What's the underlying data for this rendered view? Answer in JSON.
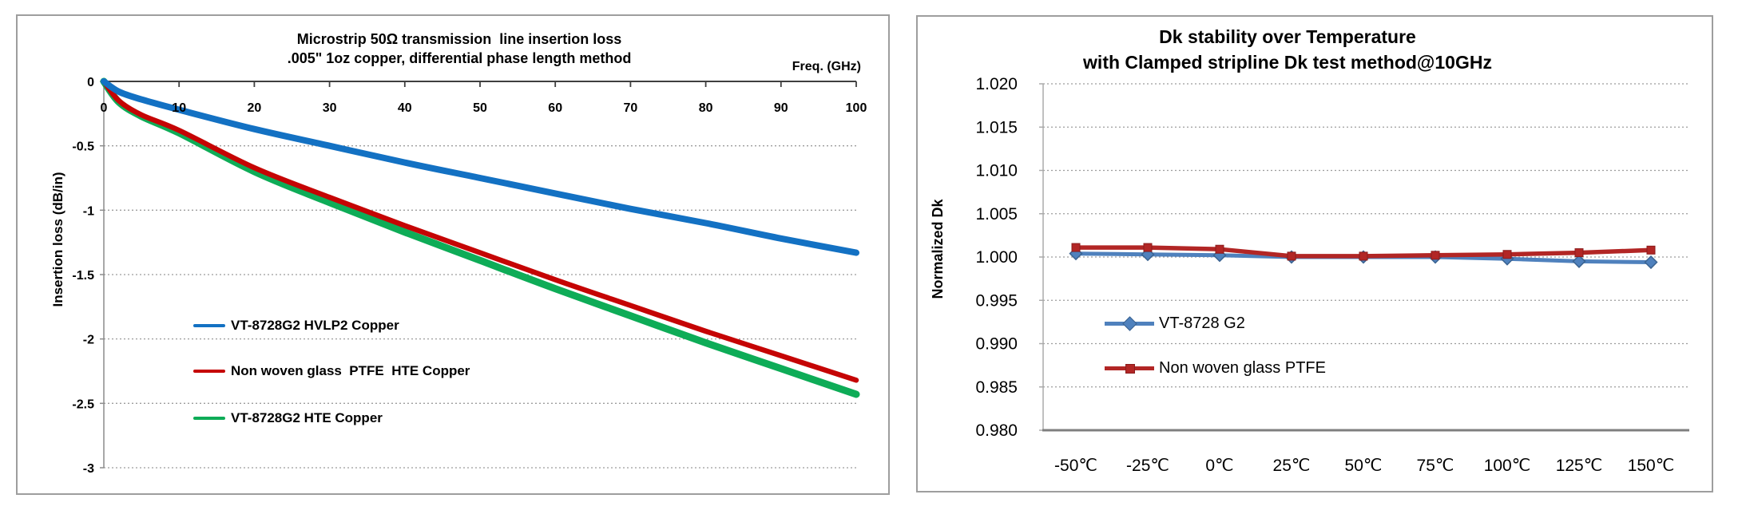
{
  "chart_data": [
    {
      "type": "line",
      "title": "Microstrip 50Ω transmission  line insertion loss",
      "subtitle": ".005\" 1oz copper, differential phase length method",
      "xlabel": "Freq. (GHz)",
      "ylabel": "Insertion loss (dB/in)",
      "xlim": [
        0,
        100
      ],
      "ylim": [
        -3,
        0
      ],
      "x_ticks": [
        0,
        10,
        20,
        30,
        40,
        50,
        60,
        70,
        80,
        90,
        100
      ],
      "y_tick_labels": [
        "0",
        "-0.5",
        "-1",
        "-1.5",
        "-2",
        "-2.5",
        "-3"
      ],
      "y_tick_values": [
        0,
        -0.5,
        -1,
        -1.5,
        -2,
        -2.5,
        -3
      ],
      "grid": "horizontal dotted",
      "legend_position": "inside lower-left",
      "x": [
        0,
        2,
        5,
        10,
        20,
        30,
        40,
        50,
        60,
        70,
        80,
        90,
        100
      ],
      "series": [
        {
          "name": "VT-8728G2 HVLP2 Copper",
          "color": "#1371C3",
          "line_width": 8,
          "values": [
            0,
            -0.08,
            -0.14,
            -0.22,
            -0.37,
            -0.5,
            -0.63,
            -0.75,
            -0.87,
            -0.99,
            -1.1,
            -1.22,
            -1.33
          ]
        },
        {
          "name": "Non woven glass  PTFE  HTE Copper",
          "color": "#C50404",
          "line_width": 6.5,
          "values": [
            0,
            -0.15,
            -0.26,
            -0.38,
            -0.67,
            -0.9,
            -1.12,
            -1.33,
            -1.54,
            -1.74,
            -1.94,
            -2.13,
            -2.32
          ]
        },
        {
          "name": "VT-8728G2 HTE Copper",
          "color": "#0EAC57",
          "line_width": 9,
          "values": [
            0,
            -0.16,
            -0.27,
            -0.4,
            -0.7,
            -0.94,
            -1.17,
            -1.39,
            -1.61,
            -1.82,
            -2.03,
            -2.23,
            -2.43
          ]
        }
      ]
    },
    {
      "type": "line",
      "title": "Dk stability over Temperature",
      "subtitle": "with Clamped stripline Dk test method@10GHz",
      "ylabel": "Normalized Dk",
      "categories": [
        "-50℃",
        "-25℃",
        "0℃",
        "25℃",
        "50℃",
        "75℃",
        "100℃",
        "125℃",
        "150℃"
      ],
      "ylim": [
        0.98,
        1.02
      ],
      "y_tick_labels": [
        "1.020",
        "1.015",
        "1.010",
        "1.005",
        "1.000",
        "0.995",
        "0.990",
        "0.985",
        "0.980"
      ],
      "y_tick_values": [
        1.02,
        1.015,
        1.01,
        1.005,
        1.0,
        0.995,
        0.99,
        0.985,
        0.98
      ],
      "grid": "horizontal dotted",
      "legend_position": "inside left-middle",
      "series": [
        {
          "name": "VT-8728 G2",
          "color": "#4F81BD",
          "marker": "diamond",
          "marker_border": "#3A6391",
          "line_width": 5,
          "values": [
            1.0004,
            1.0003,
            1.0002,
            1.0,
            1.0,
            1.0,
            0.9998,
            0.9995,
            0.9994
          ]
        },
        {
          "name": "Non woven glass PTFE",
          "color": "#B22625",
          "marker": "square",
          "marker_border": "#8B1C1C",
          "line_width": 5.5,
          "values": [
            1.0011,
            1.0011,
            1.0009,
            1.0001,
            1.0001,
            1.0002,
            1.0003,
            1.0005,
            1.0008
          ]
        }
      ]
    }
  ],
  "style": {
    "grid_color": "#9C9C9C",
    "axis_dark": "#3F3F3F",
    "axis_gray": "#8C8C8C",
    "right_axis_left": "#ABABAB",
    "right_axis_bottom": "#7F7F7F"
  }
}
